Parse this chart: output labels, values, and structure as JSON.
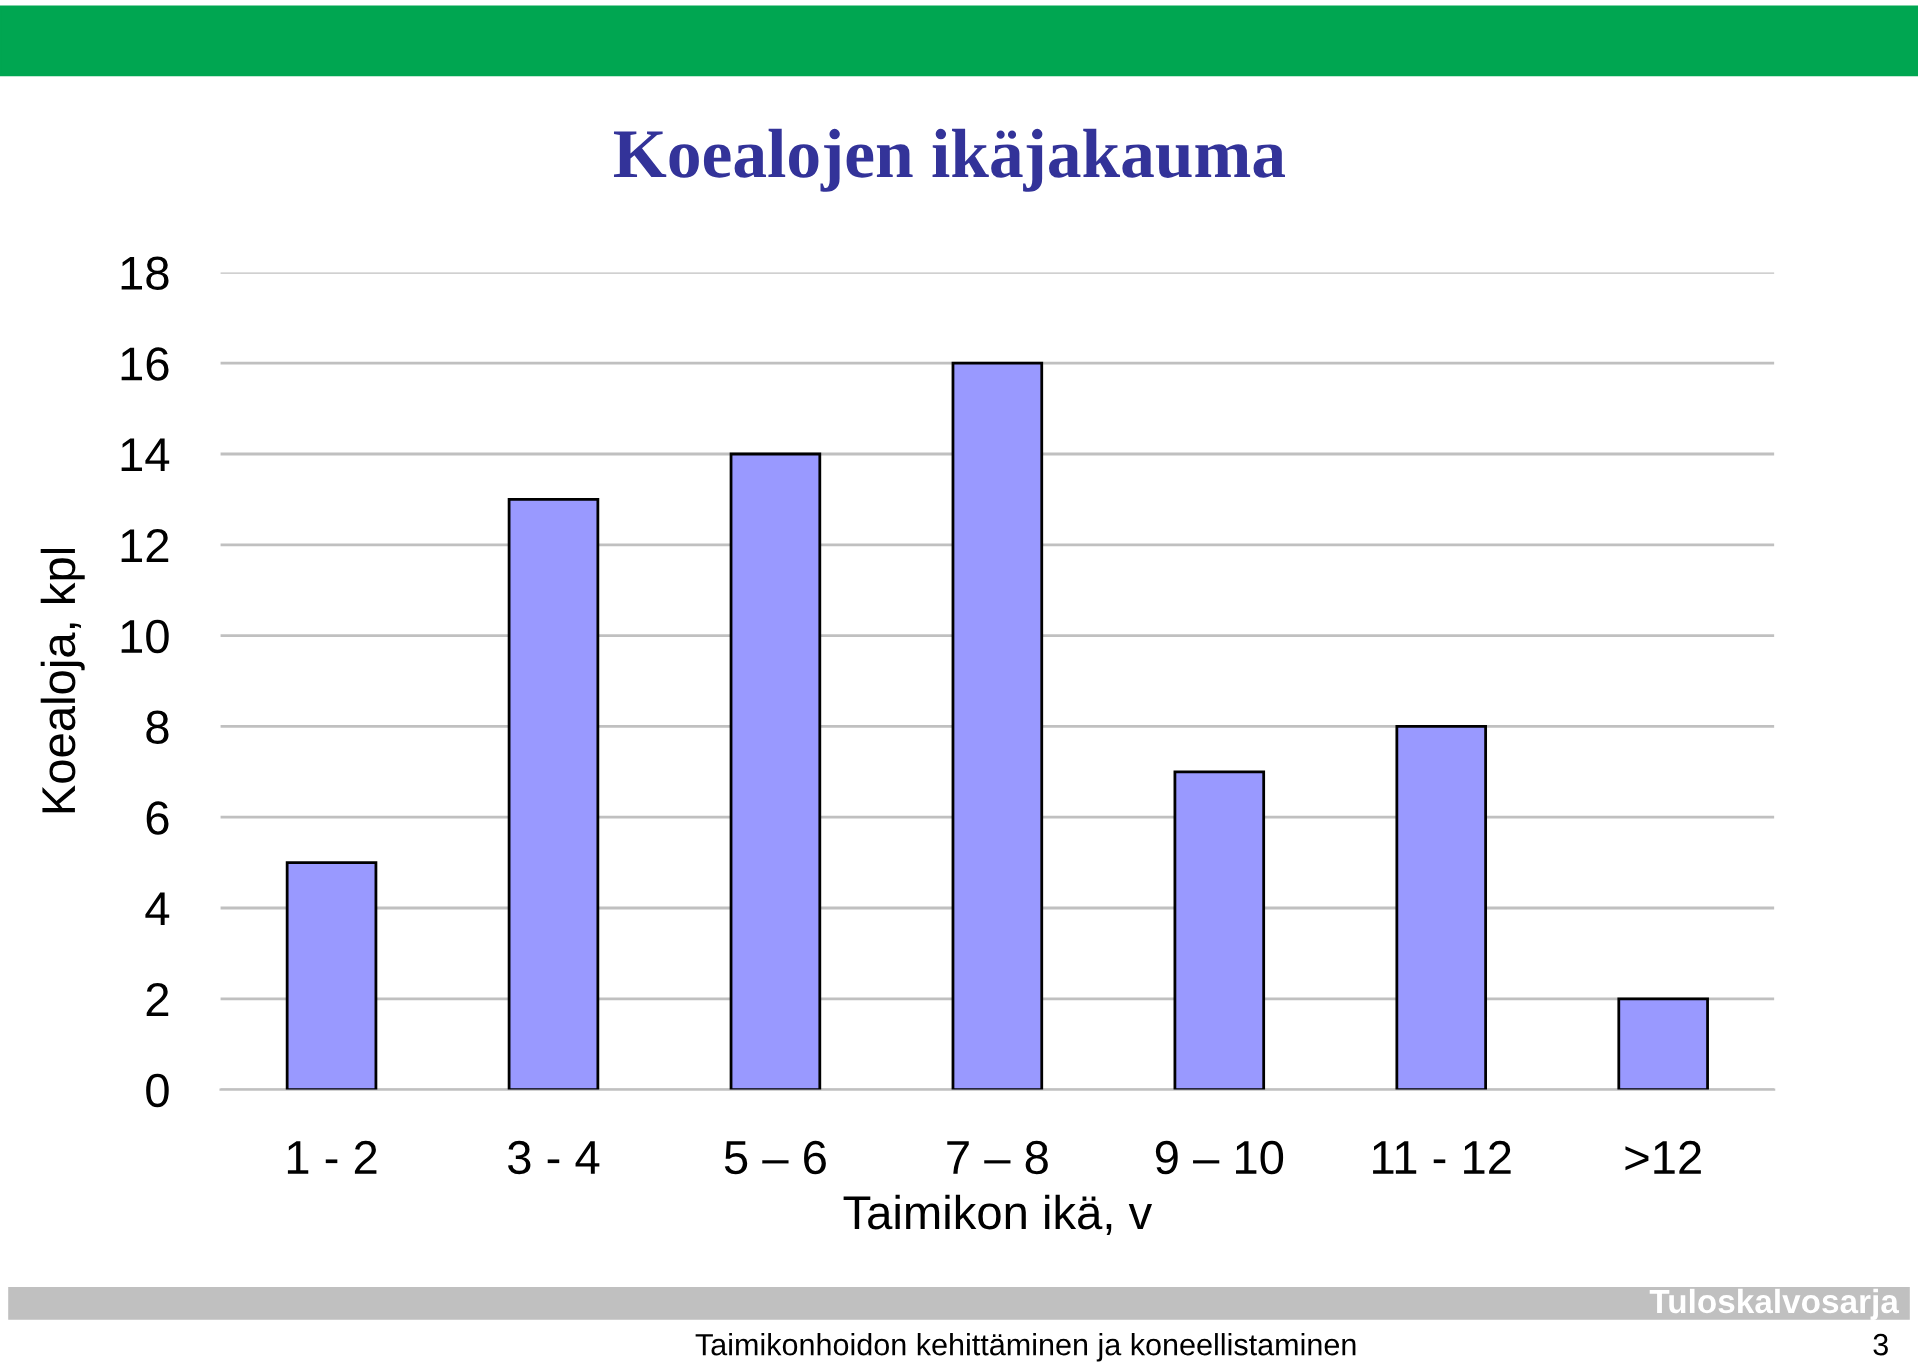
{
  "chart_data": {
    "type": "bar",
    "title": "Koealojen ikäjakauma",
    "xlabel": "Taimikon ikä, v",
    "ylabel": "Koealoja, kpl",
    "categories": [
      "1 - 2",
      "3 - 4",
      "5 – 6",
      "7 – 8",
      "9 – 10",
      "11 - 12",
      ">12"
    ],
    "values": [
      5,
      13,
      14,
      16,
      7,
      8,
      2
    ],
    "color": "#9999ff",
    "ylim": [
      0,
      18
    ],
    "yticks": [
      0,
      2,
      4,
      6,
      8,
      10,
      12,
      14,
      16,
      18
    ],
    "grid": "y",
    "legend": false,
    "annotations": [
      "Tuloskalvosarja",
      "Taimikonhoidon kehittäminen ja koneellistaminen",
      "3"
    ]
  }
}
